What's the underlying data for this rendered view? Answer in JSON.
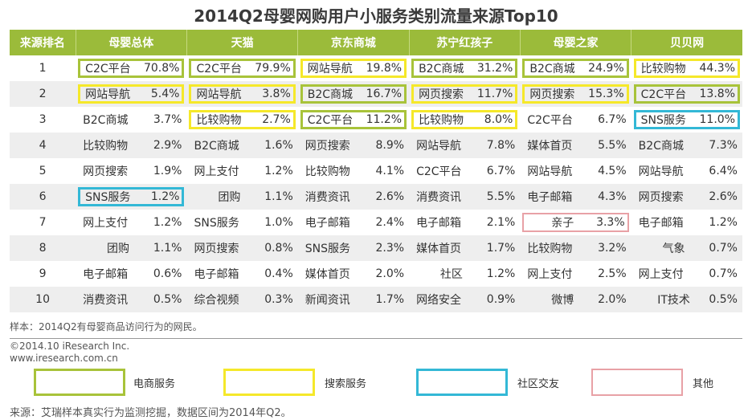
{
  "title": "2014Q2母婴网购用户小服务类别流量来源Top10",
  "header": {
    "rank_label": "来源排名",
    "groups": [
      "母婴总体",
      "天猫",
      "京东商城",
      "苏宁红孩子",
      "母婴之家",
      "贝贝网"
    ]
  },
  "rows": [
    {
      "rank": "1",
      "cells": [
        {
          "name": "C2C平台",
          "pct": "70.8%",
          "hl": "ecom"
        },
        {
          "name": "C2C平台",
          "pct": "79.9%",
          "hl": "ecom"
        },
        {
          "name": "网站导航",
          "pct": "19.8%",
          "hl": "search"
        },
        {
          "name": "B2C商城",
          "pct": "31.2%",
          "hl": "ecom"
        },
        {
          "name": "B2C商城",
          "pct": "24.9%",
          "hl": "ecom"
        },
        {
          "name": "比较购物",
          "pct": "44.3%",
          "hl": "search"
        }
      ]
    },
    {
      "rank": "2",
      "cells": [
        {
          "name": "网站导航",
          "pct": "5.4%",
          "hl": "search"
        },
        {
          "name": "网站导航",
          "pct": "3.8%",
          "hl": "search"
        },
        {
          "name": "B2C商城",
          "pct": "16.7%",
          "hl": "ecom"
        },
        {
          "name": "网页搜索",
          "pct": "11.7%",
          "hl": "search"
        },
        {
          "name": "网页搜索",
          "pct": "15.3%",
          "hl": "search"
        },
        {
          "name": "C2C平台",
          "pct": "13.8%",
          "hl": "ecom"
        }
      ]
    },
    {
      "rank": "3",
      "cells": [
        {
          "name": "B2C商城",
          "pct": "3.7%",
          "hl": ""
        },
        {
          "name": "比较购物",
          "pct": "2.7%",
          "hl": "search"
        },
        {
          "name": "C2C平台",
          "pct": "11.2%",
          "hl": "ecom"
        },
        {
          "name": "比较购物",
          "pct": "8.0%",
          "hl": "search"
        },
        {
          "name": "C2C平台",
          "pct": "6.7%",
          "hl": ""
        },
        {
          "name": "SNS服务",
          "pct": "11.0%",
          "hl": "social"
        }
      ]
    },
    {
      "rank": "4",
      "cells": [
        {
          "name": "比较购物",
          "pct": "2.9%",
          "hl": ""
        },
        {
          "name": "B2C商城",
          "pct": "1.6%",
          "hl": ""
        },
        {
          "name": "网页搜索",
          "pct": "8.9%",
          "hl": ""
        },
        {
          "name": "网站导航",
          "pct": "7.8%",
          "hl": ""
        },
        {
          "name": "媒体首页",
          "pct": "5.5%",
          "hl": ""
        },
        {
          "name": "B2C商城",
          "pct": "7.3%",
          "hl": ""
        }
      ]
    },
    {
      "rank": "5",
      "cells": [
        {
          "name": "网页搜索",
          "pct": "1.9%",
          "hl": ""
        },
        {
          "name": "网上支付",
          "pct": "1.2%",
          "hl": ""
        },
        {
          "name": "比较购物",
          "pct": "4.1%",
          "hl": ""
        },
        {
          "name": "C2C平台",
          "pct": "6.7%",
          "hl": ""
        },
        {
          "name": "网站导航",
          "pct": "4.5%",
          "hl": ""
        },
        {
          "name": "网站导航",
          "pct": "6.4%",
          "hl": ""
        }
      ]
    },
    {
      "rank": "6",
      "cells": [
        {
          "name": "SNS服务",
          "pct": "1.2%",
          "hl": "social"
        },
        {
          "name": "团购",
          "pct": "1.1%",
          "hl": "",
          "center": true
        },
        {
          "name": "消费资讯",
          "pct": "2.6%",
          "hl": ""
        },
        {
          "name": "消费资讯",
          "pct": "5.5%",
          "hl": ""
        },
        {
          "name": "电子邮箱",
          "pct": "4.3%",
          "hl": ""
        },
        {
          "name": "网页搜索",
          "pct": "2.6%",
          "hl": ""
        }
      ]
    },
    {
      "rank": "7",
      "cells": [
        {
          "name": "网上支付",
          "pct": "1.2%",
          "hl": ""
        },
        {
          "name": "SNS服务",
          "pct": "1.0%",
          "hl": ""
        },
        {
          "name": "电子邮箱",
          "pct": "2.4%",
          "hl": ""
        },
        {
          "name": "电子邮箱",
          "pct": "2.1%",
          "hl": ""
        },
        {
          "name": "亲子",
          "pct": "3.3%",
          "hl": "other",
          "center": true
        },
        {
          "name": "电子邮箱",
          "pct": "1.2%",
          "hl": ""
        }
      ]
    },
    {
      "rank": "8",
      "cells": [
        {
          "name": "团购",
          "pct": "1.1%",
          "hl": "",
          "center": true
        },
        {
          "name": "网页搜索",
          "pct": "0.8%",
          "hl": ""
        },
        {
          "name": "SNS服务",
          "pct": "2.3%",
          "hl": ""
        },
        {
          "name": "媒体首页",
          "pct": "1.7%",
          "hl": ""
        },
        {
          "name": "比较购物",
          "pct": "3.2%",
          "hl": ""
        },
        {
          "name": "气象",
          "pct": "0.7%",
          "hl": "",
          "center": true
        }
      ]
    },
    {
      "rank": "9",
      "cells": [
        {
          "name": "电子邮箱",
          "pct": "0.6%",
          "hl": ""
        },
        {
          "name": "电子邮箱",
          "pct": "0.4%",
          "hl": ""
        },
        {
          "name": "媒体首页",
          "pct": "2.0%",
          "hl": ""
        },
        {
          "name": "社区",
          "pct": "1.2%",
          "hl": "",
          "center": true
        },
        {
          "name": "网上支付",
          "pct": "2.5%",
          "hl": ""
        },
        {
          "name": "网上支付",
          "pct": "0.7%",
          "hl": ""
        }
      ]
    },
    {
      "rank": "10",
      "cells": [
        {
          "name": "消费资讯",
          "pct": "0.5%",
          "hl": ""
        },
        {
          "name": "综合视频",
          "pct": "0.3%",
          "hl": ""
        },
        {
          "name": "新闻资讯",
          "pct": "1.7%",
          "hl": ""
        },
        {
          "name": "网络安全",
          "pct": "0.9%",
          "hl": ""
        },
        {
          "name": "微博",
          "pct": "2.0%",
          "hl": "",
          "center": true
        },
        {
          "name": "IT技术",
          "pct": "0.5%",
          "hl": "",
          "center": true
        }
      ]
    }
  ],
  "sample_note": "样本：2014Q2有母婴商品访问行为的网民。",
  "copyright_line1": "©2014.10 iResearch Inc.",
  "copyright_line2": "www.iresearch.com.cn",
  "legend": [
    {
      "label": "电商服务",
      "color": "#a8c33a"
    },
    {
      "label": "搜索服务",
      "color": "#f5e82a"
    },
    {
      "label": "社区交友",
      "color": "#33b8d6"
    },
    {
      "label": "其他",
      "color": "#e8a1a6"
    }
  ],
  "source_note": "来源：艾瑞样本真实行为监测挖掘，数据区间为2014年Q2。",
  "colors": {
    "header_bg": "#9bbb3a",
    "row_alt_bg": "#eeeeee"
  }
}
